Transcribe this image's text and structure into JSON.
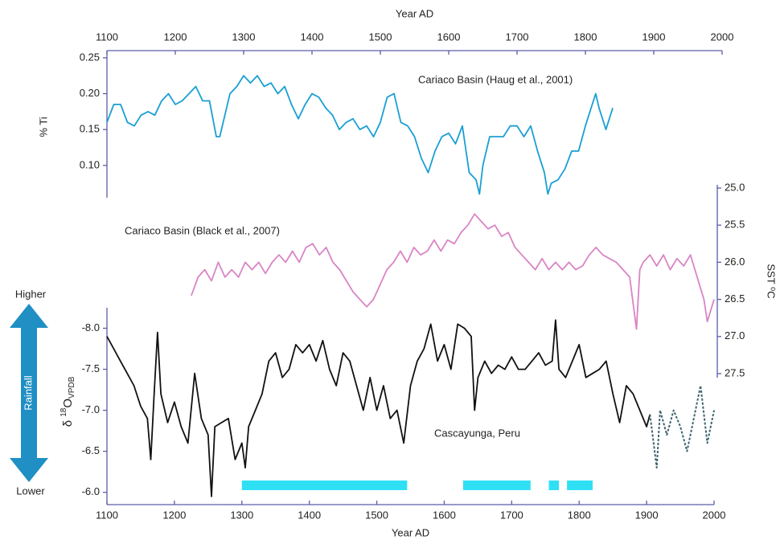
{
  "chart_data": [
    {
      "type": "line",
      "xlabel": "Year AD",
      "xlim": [
        1100,
        2000
      ],
      "xticks": [
        1100,
        1200,
        1300,
        1400,
        1500,
        1600,
        1700,
        1800,
        1900,
        2000
      ],
      "ylabel": "% Ti",
      "ylim": [
        0.055,
        0.26
      ],
      "yticks": [
        {
          "value": 0.1,
          "label": "0.10"
        },
        0.15,
        {
          "value": 0.2,
          "label": "0.20"
        },
        0.25
      ],
      "annotation": "Cariaco Basin (Haug et al., 2001)",
      "series": [
        {
          "color": "#1a9fd4",
          "x": [
            1100,
            1110,
            1120,
            1130,
            1140,
            1150,
            1160,
            1170,
            1180,
            1190,
            1200,
            1210,
            1220,
            1230,
            1240,
            1250,
            1260,
            1265,
            1280,
            1290,
            1300,
            1310,
            1320,
            1330,
            1340,
            1350,
            1360,
            1370,
            1380,
            1390,
            1400,
            1410,
            1420,
            1430,
            1440,
            1450,
            1460,
            1470,
            1480,
            1490,
            1500,
            1510,
            1520,
            1530,
            1540,
            1550,
            1560,
            1570,
            1580,
            1590,
            1600,
            1610,
            1620,
            1630,
            1640,
            1645,
            1650,
            1660,
            1670,
            1680,
            1690,
            1700,
            1710,
            1720,
            1730,
            1740,
            1745,
            1750,
            1760,
            1770,
            1780,
            1790,
            1800,
            1810,
            1815,
            1820,
            1830,
            1840
          ],
          "values": [
            0.16,
            0.185,
            0.185,
            0.16,
            0.155,
            0.17,
            0.175,
            0.17,
            0.19,
            0.2,
            0.185,
            0.19,
            0.2,
            0.21,
            0.19,
            0.19,
            0.14,
            0.14,
            0.2,
            0.21,
            0.225,
            0.215,
            0.225,
            0.21,
            0.215,
            0.2,
            0.21,
            0.185,
            0.165,
            0.185,
            0.2,
            0.195,
            0.18,
            0.17,
            0.15,
            0.16,
            0.165,
            0.15,
            0.155,
            0.14,
            0.16,
            0.195,
            0.2,
            0.16,
            0.155,
            0.14,
            0.11,
            0.09,
            0.12,
            0.14,
            0.145,
            0.13,
            0.155,
            0.09,
            0.08,
            0.06,
            0.1,
            0.14,
            0.14,
            0.14,
            0.155,
            0.155,
            0.14,
            0.155,
            0.12,
            0.09,
            0.06,
            0.075,
            0.08,
            0.095,
            0.12,
            0.12,
            0.155,
            0.185,
            0.2,
            0.18,
            0.15,
            0.18
          ]
        }
      ]
    },
    {
      "type": "line",
      "xlim": [
        1100,
        2000
      ],
      "ylabel": "SST ⁰C",
      "yaxis": "right",
      "ylim": [
        27.5,
        25.0
      ],
      "yticks": [
        {
          "value": 25,
          "label": "25.0"
        },
        25.5,
        {
          "value": 26,
          "label": "26.0"
        },
        26.5,
        {
          "value": 27,
          "label": "27.0"
        },
        27.5
      ],
      "annotation": "Cariaco Basin (Black et al., 2007)",
      "series": [
        {
          "color": "#d985c4",
          "x": [
            1225,
            1235,
            1245,
            1255,
            1265,
            1275,
            1285,
            1295,
            1305,
            1315,
            1325,
            1335,
            1345,
            1355,
            1365,
            1375,
            1385,
            1395,
            1405,
            1415,
            1425,
            1435,
            1445,
            1455,
            1465,
            1475,
            1485,
            1495,
            1505,
            1515,
            1525,
            1535,
            1545,
            1555,
            1565,
            1575,
            1585,
            1595,
            1605,
            1615,
            1625,
            1635,
            1645,
            1655,
            1665,
            1675,
            1685,
            1695,
            1705,
            1715,
            1725,
            1735,
            1745,
            1755,
            1765,
            1775,
            1785,
            1795,
            1805,
            1815,
            1825,
            1835,
            1845,
            1855,
            1865,
            1875,
            1885,
            1890,
            1895,
            1905,
            1915,
            1925,
            1935,
            1945,
            1955,
            1965,
            1975,
            1985,
            1990,
            2000
          ],
          "values": [
            26.45,
            26.2,
            26.1,
            26.25,
            26.0,
            26.2,
            26.1,
            26.2,
            26.0,
            26.1,
            26.0,
            26.15,
            26.0,
            25.9,
            26.0,
            25.85,
            26.0,
            25.8,
            25.75,
            25.9,
            25.8,
            26.0,
            26.1,
            26.25,
            26.4,
            26.5,
            26.6,
            26.5,
            26.3,
            26.1,
            26.0,
            25.85,
            26.0,
            25.8,
            25.9,
            25.85,
            25.7,
            25.85,
            25.7,
            25.75,
            25.6,
            25.5,
            25.35,
            25.45,
            25.55,
            25.5,
            25.65,
            25.6,
            25.8,
            25.9,
            26.0,
            26.1,
            25.95,
            26.1,
            26.0,
            26.1,
            26.0,
            26.1,
            26.05,
            25.9,
            25.8,
            25.9,
            25.95,
            26.0,
            26.1,
            26.2,
            26.9,
            26.1,
            26.0,
            25.9,
            26.05,
            25.9,
            26.1,
            25.95,
            26.05,
            25.9,
            26.2,
            26.5,
            26.8,
            26.5
          ]
        }
      ]
    },
    {
      "type": "line",
      "xlabel": "Year AD",
      "xlim": [
        1100,
        2000
      ],
      "xticks": [
        1100,
        1200,
        1300,
        1400,
        1500,
        1600,
        1700,
        1800,
        1900,
        2000
      ],
      "ylabel": [
        "δ ",
        "18",
        "O",
        "VPDB"
      ],
      "ylim": [
        -5.85,
        -8.25
      ],
      "yticks": [
        {
          "value": -8,
          "label": "-8.0"
        },
        -7.5,
        {
          "value": -7,
          "label": "-7.0"
        },
        -6.5,
        {
          "value": -6,
          "label": "-6.0"
        }
      ],
      "annotation": "Cascayunga, Peru",
      "rainfall": {
        "label": "Rainfall",
        "higher": "Higher",
        "lower": "Lower",
        "color": "#1f8fc4"
      },
      "intervals": {
        "color": "#2fe0f5",
        "spans": [
          {
            "start": 1300,
            "end": 1545
          },
          {
            "start": 1628,
            "end": 1728
          },
          {
            "start": 1755,
            "end": 1770
          },
          {
            "start": 1782,
            "end": 1820
          }
        ]
      },
      "series": [
        {
          "color": "#111111",
          "x": [
            1100,
            1110,
            1120,
            1130,
            1140,
            1150,
            1160,
            1165,
            1170,
            1175,
            1180,
            1190,
            1200,
            1210,
            1220,
            1230,
            1240,
            1250,
            1255,
            1260,
            1270,
            1280,
            1290,
            1300,
            1305,
            1310,
            1320,
            1330,
            1340,
            1350,
            1360,
            1370,
            1380,
            1390,
            1400,
            1410,
            1420,
            1430,
            1440,
            1450,
            1460,
            1470,
            1480,
            1490,
            1500,
            1510,
            1520,
            1530,
            1540,
            1550,
            1560,
            1570,
            1580,
            1590,
            1600,
            1610,
            1620,
            1630,
            1640,
            1645,
            1650,
            1660,
            1670,
            1680,
            1690,
            1700,
            1710,
            1720,
            1730,
            1740,
            1750,
            1760,
            1765,
            1770,
            1780,
            1790,
            1800,
            1810,
            1820,
            1830,
            1840,
            1850,
            1860,
            1870,
            1880,
            1890,
            1900,
            1905
          ],
          "values": [
            -7.9,
            -7.75,
            -7.6,
            -7.45,
            -7.3,
            -7.05,
            -6.9,
            -6.4,
            -7.2,
            -7.95,
            -7.2,
            -6.85,
            -7.1,
            -6.8,
            -6.6,
            -7.45,
            -6.9,
            -6.7,
            -5.95,
            -6.8,
            -6.85,
            -6.9,
            -6.4,
            -6.6,
            -6.3,
            -6.8,
            -7.0,
            -7.2,
            -7.6,
            -7.7,
            -7.4,
            -7.5,
            -7.8,
            -7.7,
            -7.8,
            -7.6,
            -7.85,
            -7.5,
            -7.3,
            -7.7,
            -7.6,
            -7.3,
            -7.0,
            -7.4,
            -7.0,
            -7.3,
            -6.9,
            -7.0,
            -6.6,
            -7.3,
            -7.6,
            -7.75,
            -8.05,
            -7.6,
            -7.8,
            -7.5,
            -8.05,
            -8.0,
            -7.9,
            -7.0,
            -7.4,
            -7.6,
            -7.45,
            -7.55,
            -7.5,
            -7.65,
            -7.5,
            -7.5,
            -7.6,
            -7.7,
            -7.55,
            -7.6,
            -8.1,
            -7.5,
            -7.4,
            -7.6,
            -7.8,
            -7.4,
            -7.45,
            -7.5,
            -7.6,
            -7.2,
            -6.85,
            -7.3,
            -7.2,
            -7.0,
            -6.8,
            -6.95
          ]
        },
        {
          "color": "#3e6470",
          "dashed": true,
          "x": [
            1905,
            1915,
            1920,
            1930,
            1940,
            1950,
            1960,
            1970,
            1980,
            1990,
            2000
          ],
          "values": [
            -6.95,
            -6.3,
            -7.0,
            -6.7,
            -7.0,
            -6.8,
            -6.5,
            -6.9,
            -7.3,
            -6.6,
            -7.0
          ]
        }
      ]
    }
  ]
}
